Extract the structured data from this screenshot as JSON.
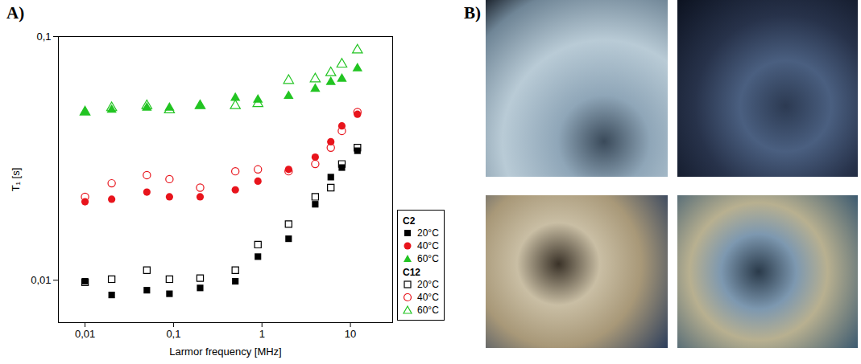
{
  "chart_data": {
    "type": "scatter",
    "panel_label": "A)",
    "x_label": "Larmor frequency [MHz]",
    "y_label": "T₁ [s]",
    "log": true,
    "grid": false,
    "legend": "right",
    "x": [
      0.01,
      0.02,
      0.05,
      0.09,
      0.2,
      0.5,
      0.9,
      2,
      4,
      6,
      8,
      12
    ],
    "xlim": [
      0.005,
      30
    ],
    "xticks": [
      {
        "value": 0.01,
        "label": "0,01"
      },
      {
        "value": 0.1,
        "label": "0,1"
      },
      1,
      10
    ],
    "ylim": [
      0.0067,
      0.1
    ],
    "yticks": [
      {
        "value": 0.01,
        "label": "0,01"
      },
      {
        "value": 0.1,
        "label": "0,1"
      }
    ],
    "series": [
      {
        "name": "20°C",
        "group": "C2",
        "color": "#000000",
        "marker": "filled-square",
        "values": [
          0.0099,
          0.0087,
          0.0091,
          0.0088,
          0.0093,
          0.0099,
          0.0125,
          0.0148,
          0.0205,
          0.0265,
          0.029,
          0.034
        ]
      },
      {
        "name": "40°C",
        "group": "C2",
        "color": "#e8141c",
        "marker": "filled-circle",
        "values": [
          0.021,
          0.0215,
          0.023,
          0.022,
          0.022,
          0.0235,
          0.0255,
          0.0285,
          0.032,
          0.037,
          0.043,
          0.048
        ]
      },
      {
        "name": "60°C",
        "group": "C2",
        "color": "#22c422",
        "marker": "filled-triangle",
        "values": [
          0.049,
          0.05,
          0.051,
          0.051,
          0.052,
          0.056,
          0.055,
          0.057,
          0.061,
          0.065,
          0.067,
          0.074
        ]
      },
      {
        "name": "20°C",
        "group": "C12",
        "color": "#000000",
        "marker": "open-square",
        "values": [
          0.0098,
          0.0101,
          0.011,
          0.0101,
          0.0102,
          0.011,
          0.014,
          0.017,
          0.022,
          0.024,
          0.03,
          0.035
        ]
      },
      {
        "name": "40°C",
        "group": "C12",
        "color": "#e8141c",
        "marker": "open-circle",
        "values": [
          0.022,
          0.025,
          0.027,
          0.026,
          0.024,
          0.028,
          0.0285,
          0.028,
          0.03,
          0.035,
          0.041,
          0.049
        ]
      },
      {
        "name": "60°C",
        "group": "C12",
        "color": "#22c422",
        "marker": "open-triangle",
        "values": [
          0.049,
          0.051,
          0.052,
          0.05,
          0.052,
          0.052,
          0.053,
          0.066,
          0.067,
          0.071,
          0.077,
          0.088
        ]
      }
    ]
  },
  "images_panel": {
    "panel_label": "B)",
    "images": 4
  }
}
